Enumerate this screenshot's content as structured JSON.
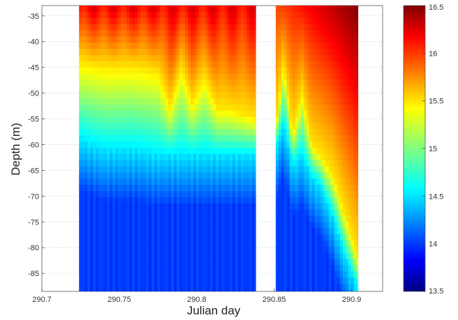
{
  "chart_data": {
    "type": "heatmap",
    "title": "",
    "xlabel": "Julian day",
    "ylabel": "Depth (m)",
    "xlim": [
      290.7,
      290.92
    ],
    "ylim": [
      -88.5,
      -33
    ],
    "xticks": [
      "290.7",
      "290.75",
      "290.8",
      "290.85",
      "290.9"
    ],
    "xtick_values": [
      290.7,
      290.75,
      290.8,
      290.85,
      290.9
    ],
    "yticks": [
      "-35",
      "-40",
      "-45",
      "-50",
      "-55",
      "-60",
      "-65",
      "-70",
      "-75",
      "-80",
      "-85"
    ],
    "ytick_values": [
      -35,
      -40,
      -45,
      -50,
      -55,
      -60,
      -65,
      -70,
      -75,
      -80,
      -85
    ],
    "grid": true,
    "colormap": "jet",
    "colorbar": {
      "vmin": 13.5,
      "vmax": 16.5,
      "ticks": [
        "16.5",
        "16",
        "15.5",
        "15",
        "14.5",
        "14",
        "13.5"
      ],
      "tick_values": [
        16.5,
        16,
        15.5,
        15,
        14.5,
        14,
        13.5
      ]
    },
    "data_segments": [
      {
        "x_start": 290.724,
        "x_end": 290.838
      },
      {
        "x_start": 290.851,
        "x_end": 290.904
      }
    ],
    "segment_1_thermocline": {
      "julian_day": [
        290.724,
        290.74,
        290.76,
        290.775,
        290.783,
        290.79,
        290.797,
        290.805,
        290.813,
        290.82,
        290.838
      ],
      "warm_layer_bottom_depth": [
        -44,
        -45,
        -45,
        -46,
        -53,
        -45,
        -52,
        -47,
        -53,
        -53,
        -55
      ],
      "cold_layer_top_depth": [
        -59,
        -61,
        -61,
        -62,
        -62,
        -62,
        -62,
        -62,
        -62,
        -62,
        -62
      ]
    },
    "segment_2_thermocline": {
      "julian_day": [
        290.851,
        290.856,
        290.862,
        290.868,
        290.874,
        290.88,
        290.888,
        290.896,
        290.904
      ],
      "warm_layer_bottom_depth": [
        -57,
        -44,
        -58,
        -50,
        -60,
        -62,
        -66,
        -74,
        -82
      ],
      "cold_layer_top_depth": [
        -61,
        -56,
        -64,
        -62,
        -66,
        -68,
        -74,
        -82,
        -88
      ]
    }
  }
}
